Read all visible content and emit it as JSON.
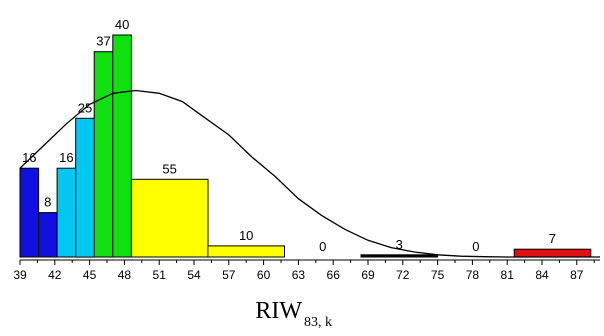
{
  "chart_data": {
    "type": "bar",
    "xlim": [
      39,
      89
    ],
    "ylim": [
      0,
      40
    ],
    "x_ticks": [
      "39",
      "42",
      "45",
      "48",
      "51",
      "54",
      "57",
      "60",
      "63",
      "66",
      "69",
      "72",
      "75",
      "78",
      "81",
      "84",
      "87"
    ],
    "bars": [
      {
        "x_start": 39.0,
        "x_end": 40.6,
        "value": 16,
        "label": "16",
        "color": "#1010e0"
      },
      {
        "x_start": 40.6,
        "x_end": 42.2,
        "value": 8,
        "label": "8",
        "color": "#1010e0"
      },
      {
        "x_start": 42.2,
        "x_end": 43.8,
        "value": 16,
        "label": "16",
        "color": "#00c8f0"
      },
      {
        "x_start": 43.8,
        "x_end": 45.4,
        "value": 25,
        "label": "25",
        "color": "#00c8f0"
      },
      {
        "x_start": 45.4,
        "x_end": 47.0,
        "value": 37,
        "label": "37",
        "color": "#10e010"
      },
      {
        "x_start": 47.0,
        "x_end": 48.6,
        "value": 40,
        "label": "40",
        "color": "#10e010"
      },
      {
        "x_start": 48.6,
        "x_end": 55.2,
        "value": 14,
        "label": "55",
        "color": "#ffff00"
      },
      {
        "x_start": 55.2,
        "x_end": 61.8,
        "value": 2,
        "label": "10",
        "color": "#ffff00"
      },
      {
        "x_start": 61.8,
        "x_end": 68.4,
        "value": 0,
        "label": "0",
        "color": "#ffffff"
      },
      {
        "x_start": 68.4,
        "x_end": 75.0,
        "value": 0.4,
        "label": "3",
        "color": "#000000"
      },
      {
        "x_start": 75.0,
        "x_end": 81.6,
        "value": 0,
        "label": "0",
        "color": "#ffffff"
      },
      {
        "x_start": 81.6,
        "x_end": 88.2,
        "value": 1.4,
        "label": "7",
        "color": "#e01010"
      }
    ],
    "curve": {
      "x": [
        39,
        41,
        43,
        45,
        47,
        49,
        51,
        53,
        55,
        57,
        59,
        61,
        63,
        65,
        67,
        69,
        71,
        73,
        75,
        77,
        79,
        81,
        83,
        85,
        87,
        89
      ],
      "y": [
        16,
        20,
        24,
        27.5,
        29.5,
        30,
        29.5,
        28,
        25,
        22,
        18,
        14.5,
        10.5,
        7.5,
        5,
        3,
        1.7,
        0.9,
        0.4,
        0.15,
        0.05,
        0,
        0,
        0,
        0,
        0
      ]
    },
    "xlabel": "RIW",
    "xlabel_subscript": "83, k"
  }
}
